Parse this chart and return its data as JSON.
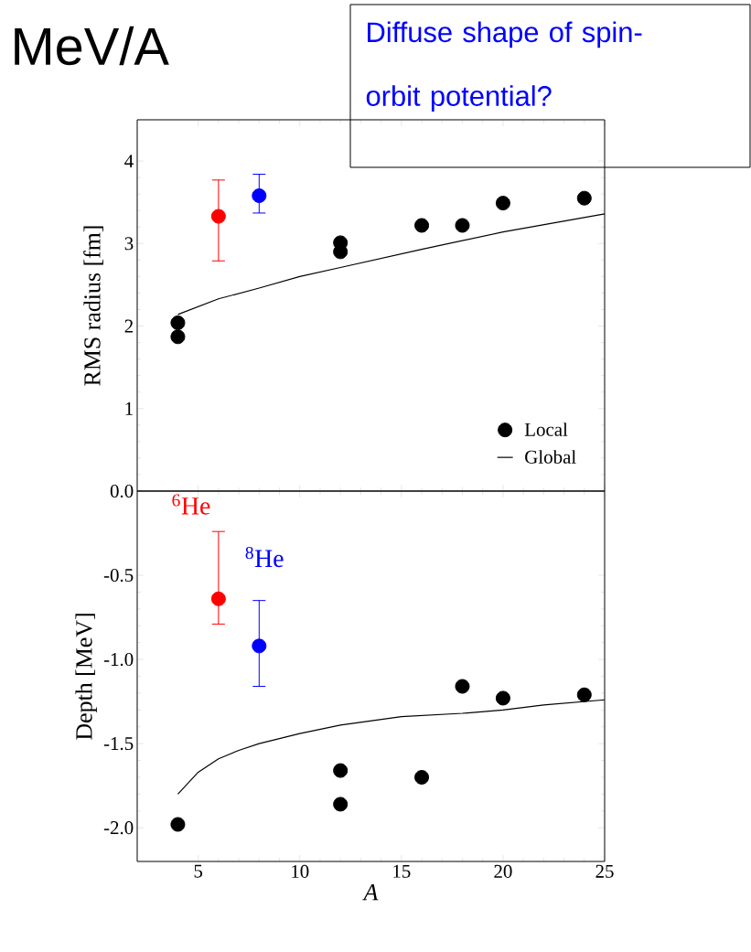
{
  "chart_data": [
    {
      "type": "scatter",
      "ylabel": "RMS radius [fm]",
      "annotations": [
        "MeV/A",
        "Diffuse shape of spin-orbit potential?"
      ],
      "xlim": [
        2,
        25
      ],
      "xticks": [
        5,
        10,
        15,
        20,
        25
      ],
      "ylim": [
        0,
        4.5
      ],
      "yticks": [
        {
          "value": 0,
          "label": "0.0"
        },
        1,
        2,
        3,
        4
      ],
      "tick_labels": "y",
      "legend": "bottom right",
      "marker": "circle",
      "grid": false,
      "series": [
        {
          "name": "Local",
          "color": "#000000",
          "x": [
            4,
            4,
            12,
            12,
            16,
            18,
            20,
            24
          ],
          "values": [
            2.04,
            1.87,
            3.01,
            2.9,
            3.22,
            3.22,
            3.49,
            3.55
          ]
        },
        {
          "color": "#ff0000",
          "x": [
            6
          ],
          "values": [
            3.33
          ],
          "errors": [
            [
              2.79,
              3.77
            ]
          ]
        },
        {
          "color": "#0000ff",
          "x": [
            8
          ],
          "values": [
            3.58
          ],
          "errors": [
            [
              3.37,
              3.84
            ]
          ]
        },
        {
          "name": "Global",
          "type": "line",
          "marker": "none",
          "color": "#000000",
          "x": [
            4,
            6,
            8,
            10,
            12,
            16,
            20,
            25
          ],
          "values": [
            2.14,
            2.33,
            2.46,
            2.6,
            2.71,
            2.93,
            3.14,
            3.36
          ]
        }
      ]
    },
    {
      "type": "scatter",
      "xlabel": "A",
      "ylabel": "Depth [MeV]",
      "annotations": [
        "$^{6}$He",
        "$^{8}$He"
      ],
      "xlim": [
        2,
        25
      ],
      "xticks": [
        5,
        10,
        15,
        20,
        25
      ],
      "ylim": [
        -2.2,
        0
      ],
      "yticks": [
        {
          "value": -2,
          "label": "-2.0"
        },
        -1.5,
        {
          "value": -1,
          "label": "-1.0"
        },
        -0.5
      ],
      "marker": "circle",
      "grid": false,
      "legend": false,
      "series": [
        {
          "color": "#000000",
          "x": [
            4,
            12,
            12,
            16,
            18,
            20,
            24
          ],
          "values": [
            -1.98,
            -1.66,
            -1.86,
            -1.7,
            -1.16,
            -1.23,
            -1.21
          ]
        },
        {
          "color": "#ff0000",
          "x": [
            6
          ],
          "values": [
            -0.64
          ],
          "errors": [
            [
              -0.79,
              -0.24
            ]
          ]
        },
        {
          "color": "#0000ff",
          "x": [
            8
          ],
          "values": [
            -0.92
          ],
          "errors": [
            [
              -1.16,
              -0.65
            ]
          ]
        },
        {
          "type": "line",
          "marker": "none",
          "color": "#000000",
          "x": [
            4,
            5,
            6,
            7,
            8,
            10,
            12,
            15,
            18,
            20,
            22,
            25
          ],
          "values": [
            -1.8,
            -1.67,
            -1.59,
            -1.54,
            -1.5,
            -1.44,
            -1.39,
            -1.34,
            -1.32,
            -1.3,
            -1.27,
            -1.24
          ]
        }
      ]
    }
  ]
}
